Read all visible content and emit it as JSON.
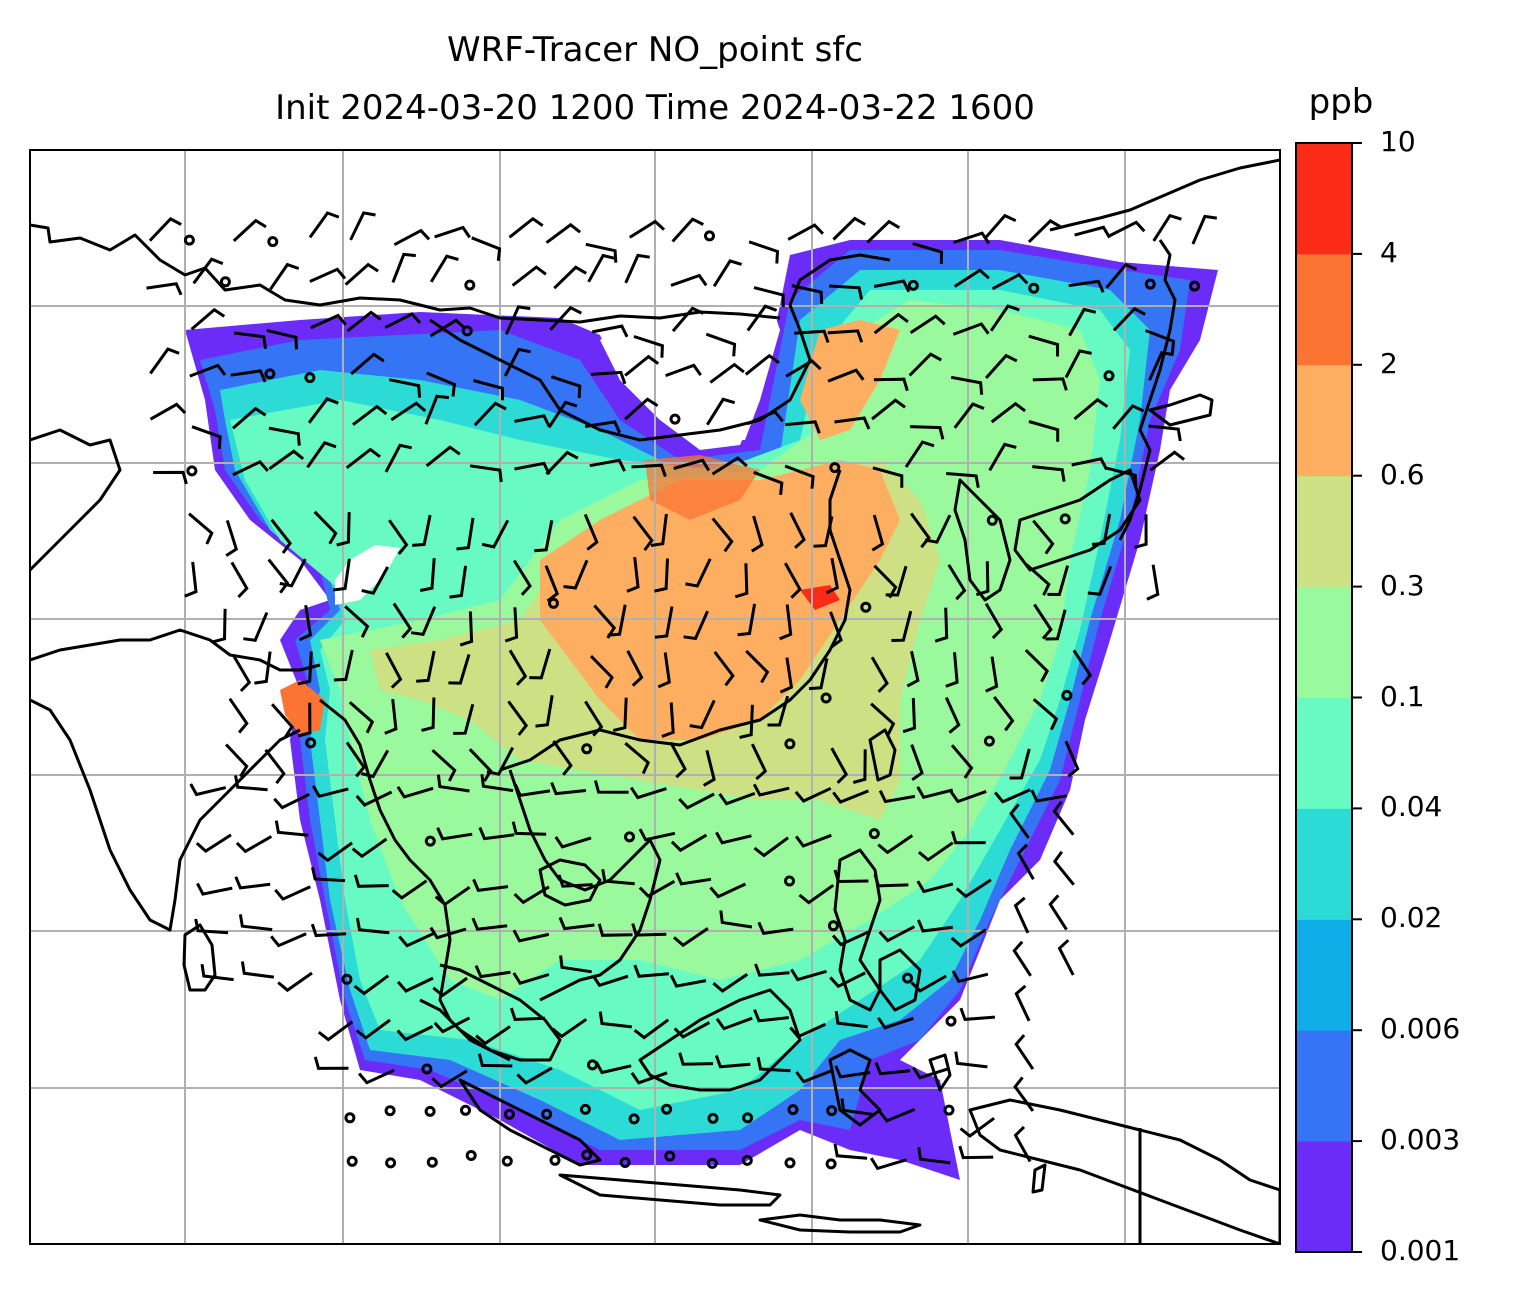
{
  "title_line1": "WRF-Tracer NO_point sfc",
  "title_line2": "Init 2024-03-20 1200 Time 2024-03-22 1600",
  "colorbar": {
    "unit": "ppb",
    "ticks": [
      "0.001",
      "0.003",
      "0.006",
      "0.02",
      "0.04",
      "0.1",
      "0.3",
      "0.6",
      "2",
      "4",
      "10"
    ],
    "colors": [
      "#6b2cf8",
      "#3574f5",
      "#10aee8",
      "#2ddbd6",
      "#67fac2",
      "#9bf99d",
      "#cde084",
      "#fdae61",
      "#fb7434",
      "#fa2c18"
    ]
  },
  "map": {
    "coastline_color": "#000000",
    "grid_color": "#b0b0b0",
    "wind_barb_color": "#000000"
  }
}
